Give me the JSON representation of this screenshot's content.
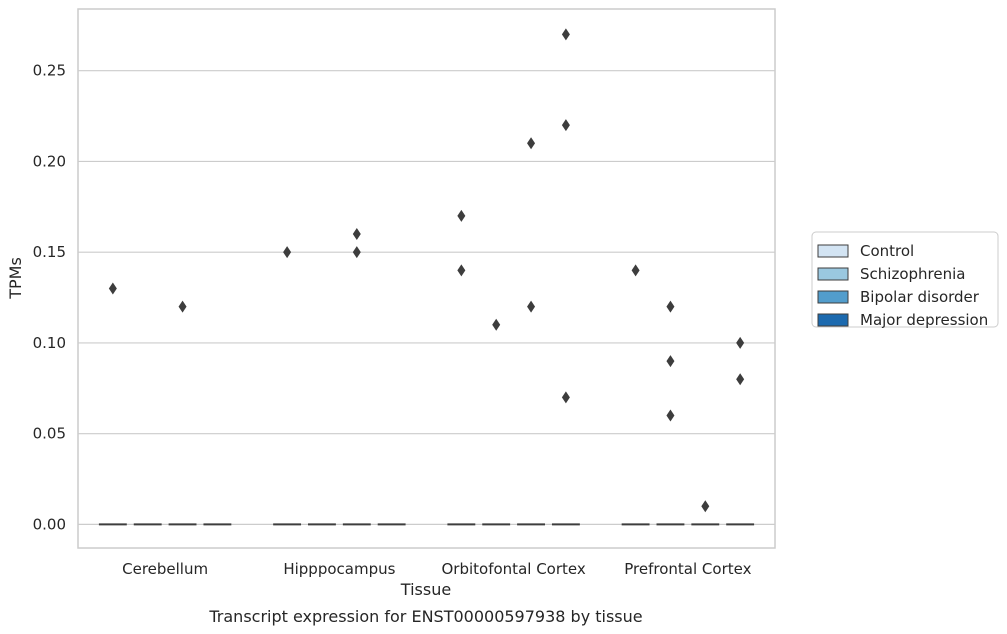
{
  "caption": "Transcript expression for ENST00000597938 by tissue",
  "chart_data": {
    "type": "boxplot",
    "title": "",
    "xlabel": "Tissue",
    "ylabel": "TPMs",
    "ylim": [
      -0.013,
      0.284
    ],
    "y_ticks": [
      0.0,
      0.05,
      0.1,
      0.15,
      0.2,
      0.25
    ],
    "y_tick_labels": [
      "0.00",
      "0.05",
      "0.10",
      "0.15",
      "0.20",
      "0.25"
    ],
    "grid": "horizontal",
    "legend_placement": "right",
    "categories": [
      "Cerebellum",
      "Hipppocampus",
      "Orbitofontal Cortex",
      "Prefrontal Cortex"
    ],
    "series": [
      {
        "name": "Control",
        "color": "#d3e4f3",
        "median": [
          0,
          0,
          0,
          0
        ],
        "outliers": [
          [
            0.13
          ],
          [
            0.15
          ],
          [
            0.17,
            0.14
          ],
          [
            0.14
          ]
        ]
      },
      {
        "name": "Schizophrenia",
        "color": "#9ac8e0",
        "median": [
          0,
          0,
          0,
          0
        ],
        "outliers": [
          [],
          [],
          [
            0.11
          ],
          [
            0.12,
            0.09,
            0.06
          ]
        ]
      },
      {
        "name": "Bipolar disorder",
        "color": "#529dcc",
        "median": [
          0,
          0,
          0,
          0
        ],
        "outliers": [
          [
            0.12
          ],
          [
            0.16,
            0.15
          ],
          [
            0.21,
            0.12
          ],
          [
            0.01
          ]
        ]
      },
      {
        "name": "Major depression",
        "color": "#1c6aaf",
        "median": [
          0,
          0,
          0,
          0
        ],
        "outliers": [
          [],
          [],
          [
            0.27,
            0.22,
            0.07
          ],
          [
            0.1,
            0.08
          ]
        ]
      }
    ]
  }
}
